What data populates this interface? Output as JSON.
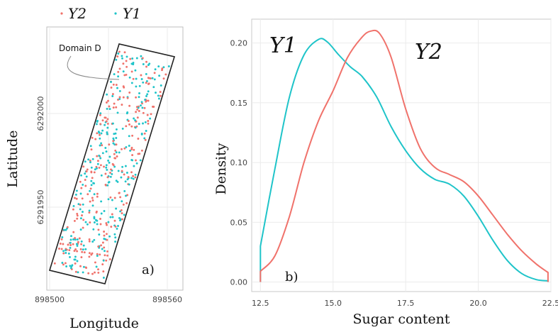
{
  "colors": {
    "y1": "#1fc4c9",
    "y2": "#f0726b",
    "frame": "#222222"
  },
  "chart_data": [
    {
      "type": "scatter",
      "panel_label": "a)",
      "xlabel": "Longitude",
      "ylabel": "Latitude",
      "x_ticks": [
        "898500",
        "898560"
      ],
      "y_ticks": [
        "6292000",
        "6291950"
      ],
      "legend": {
        "placement": "top",
        "entries": [
          "Y2",
          "Y1"
        ]
      },
      "annotation": "Domain D",
      "grid": true
    },
    {
      "type": "line",
      "panel_label": "b)",
      "xlabel": "Sugar content",
      "ylabel": "Density",
      "xlim": [
        12.2,
        22.5
      ],
      "ylim": [
        -0.008,
        0.22
      ],
      "x_ticks": [
        "12.5",
        "15.0",
        "17.5",
        "20.0",
        "22.5"
      ],
      "y_ticks": [
        "0.00",
        "0.05",
        "0.10",
        "0.15",
        "0.20"
      ],
      "grid": true,
      "series": [
        {
          "name": "Y1",
          "color": "#1fc4c9",
          "x": [
            12.5,
            13.0,
            13.5,
            14.0,
            14.5,
            14.8,
            15.2,
            15.6,
            16.0,
            16.5,
            17.0,
            17.5,
            18.0,
            18.5,
            19.0,
            19.5,
            20.0,
            20.5,
            21.0,
            21.5,
            22.0,
            22.4
          ],
          "y": [
            0.03,
            0.095,
            0.155,
            0.19,
            0.203,
            0.201,
            0.19,
            0.18,
            0.172,
            0.155,
            0.13,
            0.11,
            0.095,
            0.086,
            0.082,
            0.072,
            0.055,
            0.035,
            0.018,
            0.007,
            0.002,
            0.001
          ]
        },
        {
          "name": "Y2",
          "color": "#f0726b",
          "x": [
            12.5,
            13.0,
            13.5,
            14.0,
            14.5,
            15.0,
            15.5,
            16.0,
            16.3,
            16.6,
            17.0,
            17.5,
            18.0,
            18.5,
            19.0,
            19.5,
            20.0,
            20.5,
            21.0,
            21.5,
            22.0,
            22.4
          ],
          "y": [
            0.009,
            0.022,
            0.055,
            0.1,
            0.135,
            0.16,
            0.188,
            0.205,
            0.21,
            0.208,
            0.188,
            0.145,
            0.112,
            0.096,
            0.09,
            0.084,
            0.072,
            0.056,
            0.04,
            0.026,
            0.015,
            0.008
          ]
        }
      ],
      "curve_labels": [
        "Y1",
        "Y2"
      ]
    }
  ]
}
